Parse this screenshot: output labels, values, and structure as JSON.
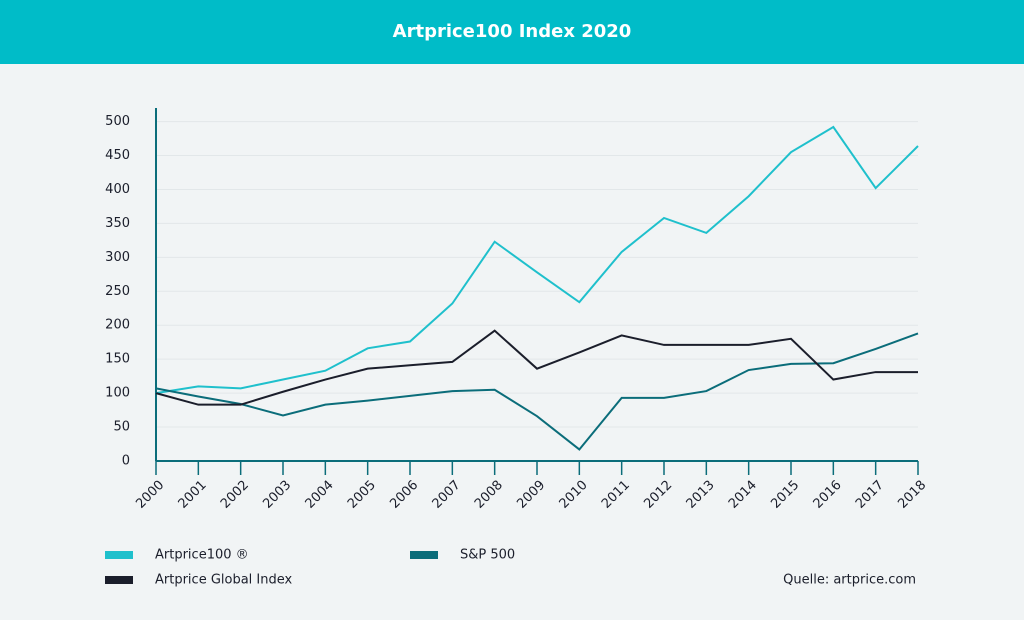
{
  "chart_data": {
    "type": "line",
    "title": "Artprice100 Index 2020",
    "categories": [
      "2000",
      "2001",
      "2002",
      "2003",
      "2004",
      "2005",
      "2006",
      "2007",
      "2008",
      "2009",
      "2010",
      "2011",
      "2012",
      "2013",
      "2014",
      "2015",
      "2016",
      "2017",
      "2018"
    ],
    "series": [
      {
        "name": "Artprice100 ®",
        "color": "#1fc0cc",
        "values": [
          100,
          110,
          107,
          120,
          133,
          166,
          176,
          232,
          323,
          278,
          234,
          308,
          358,
          336,
          390,
          455,
          492,
          402,
          464
        ]
      },
      {
        "name": "S&P 500",
        "color": "#0b6d7a",
        "values": [
          107,
          95,
          84,
          67,
          83,
          89,
          96,
          103,
          105,
          66,
          17,
          93,
          93,
          103,
          134,
          143,
          144,
          165,
          188
        ]
      },
      {
        "name": "Artprice Global Index",
        "color": "#1b1e2b",
        "values": [
          100,
          83,
          83,
          102,
          120,
          136,
          141,
          146,
          192,
          136,
          160,
          185,
          171,
          171,
          171,
          180,
          120,
          131,
          131
        ]
      }
    ],
    "ylim": [
      0,
      520
    ],
    "yticks": [
      0,
      50,
      100,
      150,
      200,
      250,
      300,
      350,
      400,
      450,
      500
    ],
    "grid": true,
    "source": "Quelle: artprice.com"
  }
}
